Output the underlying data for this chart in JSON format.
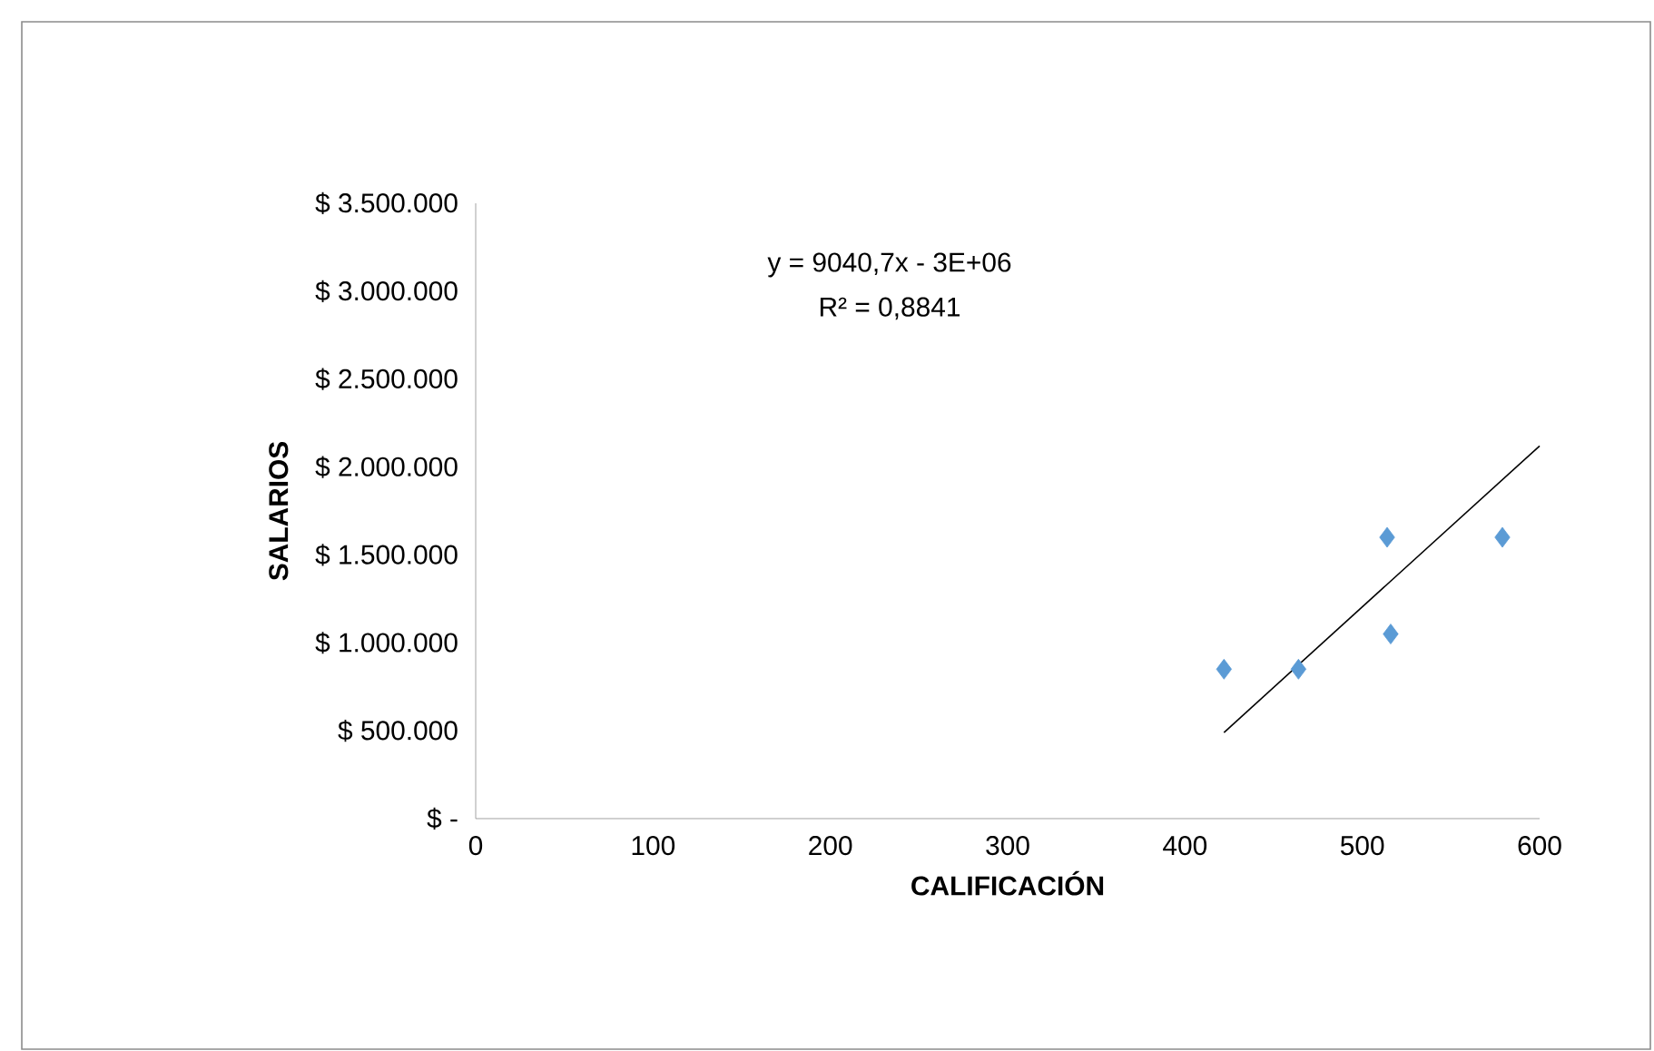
{
  "chart_data": {
    "type": "scatter",
    "xlabel": "CALIFICACIÓN",
    "ylabel": "SALARIOS",
    "annotations": [
      "y = 9040,7x - 3E+06",
      "R² = 0,8841"
    ],
    "xlim": [
      0,
      600
    ],
    "ylim": [
      0,
      3500000
    ],
    "xticks": [
      0,
      100,
      200,
      300,
      400,
      500,
      600
    ],
    "yticks": [
      {
        "value": 0,
        "label": "$ -"
      },
      {
        "value": 500000,
        "label": "$ 500.000"
      },
      {
        "value": 1000000,
        "label": "$ 1.000.000"
      },
      {
        "value": 1500000,
        "label": "$ 1.500.000"
      },
      {
        "value": 2000000,
        "label": "$ 2.000.000"
      },
      {
        "value": 2500000,
        "label": "$ 2.500.000"
      },
      {
        "value": 3000000,
        "label": "$ 3.000.000"
      },
      {
        "value": 3500000,
        "label": "$ 3.500.000"
      }
    ],
    "marker": "diamond",
    "series": [
      {
        "color": "#5b9bd5",
        "x": [
          422,
          464,
          514,
          516,
          579
        ],
        "values": [
          850000,
          850000,
          1600000,
          1050000,
          1600000
        ]
      },
      {
        "type": "line",
        "color": "#000000",
        "x": [
          422,
          600
        ],
        "values": [
          490000,
          2120000
        ],
        "marker": "none",
        "line_style": "solid"
      }
    ]
  }
}
